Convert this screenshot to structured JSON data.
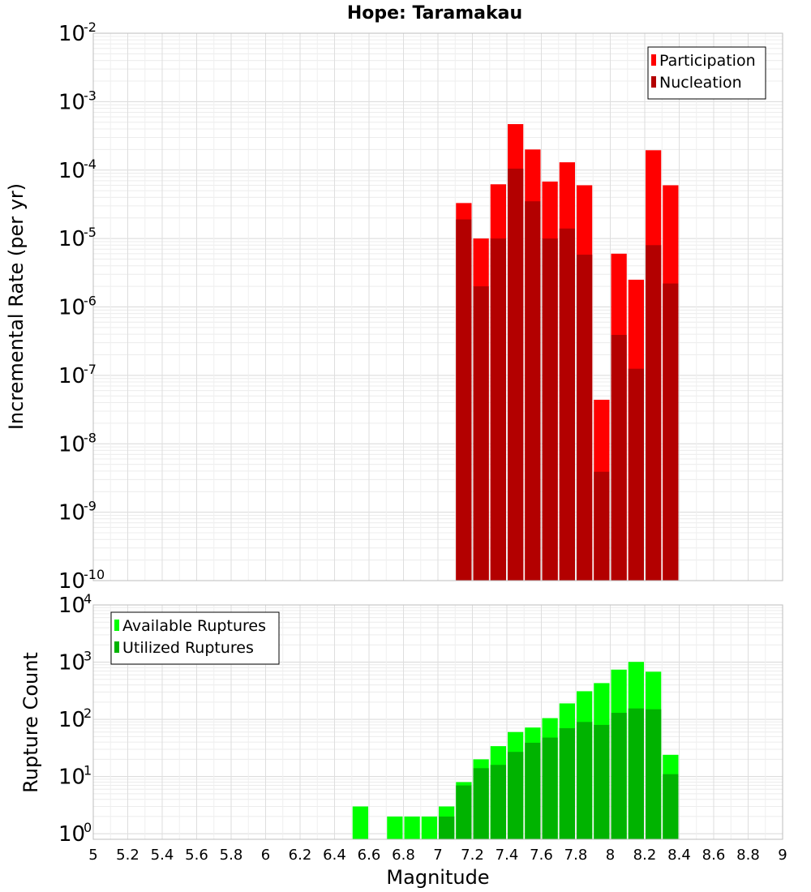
{
  "chart_data": [
    {
      "type": "bar",
      "title": "Hope: Taramakau",
      "xlabel": "Magnitude",
      "ylabel": "Incremental Rate (per yr)",
      "yscale": "log",
      "ylim": [
        1e-10,
        0.01
      ],
      "xlim": [
        5,
        9
      ],
      "grid": true,
      "legend_placement": "top-right",
      "x": [
        7.15,
        7.25,
        7.35,
        7.45,
        7.55,
        7.65,
        7.75,
        7.85,
        7.95,
        8.05,
        8.15,
        8.25,
        8.35
      ],
      "series": [
        {
          "name": "Participation",
          "color": "#ff0000",
          "values": [
            3.3e-05,
            1e-05,
            6.2e-05,
            0.00047,
            0.0002,
            6.8e-05,
            0.00013,
            6e-05,
            4.4e-08,
            6e-06,
            2.5e-06,
            0.000195,
            6e-05
          ]
        },
        {
          "name": "Nucleation",
          "color": "#b30000",
          "values": [
            1.9e-05,
            2e-06,
            1e-05,
            0.000105,
            3.5e-05,
            1e-05,
            1.4e-05,
            5.8e-06,
            3.9e-09,
            3.9e-07,
            1.25e-07,
            8e-06,
            2.2e-06
          ]
        }
      ]
    },
    {
      "type": "bar",
      "xlabel": "Magnitude",
      "ylabel": "Rupture Count",
      "yscale": "log",
      "ylim": [
        0.8,
        10000
      ],
      "xlim": [
        5,
        9
      ],
      "grid": true,
      "legend_placement": "top-left",
      "x": [
        6.55,
        6.75,
        6.85,
        6.95,
        7.05,
        7.15,
        7.25,
        7.35,
        7.45,
        7.55,
        7.65,
        7.75,
        7.85,
        7.95,
        8.05,
        8.15,
        8.25,
        8.35
      ],
      "series": [
        {
          "name": "Available Ruptures",
          "color": "#00ff00",
          "values": [
            3,
            2,
            2,
            2,
            3,
            8,
            20,
            34,
            60,
            72,
            105,
            190,
            310,
            430,
            740,
            1010,
            680,
            24
          ]
        },
        {
          "name": "Utilized Ruptures",
          "color": "#00b300",
          "values": [
            0,
            0,
            0,
            0,
            2,
            7,
            14,
            16,
            27,
            39,
            48,
            70,
            90,
            80,
            130,
            155,
            150,
            11
          ]
        }
      ]
    }
  ],
  "xticks": [
    "5",
    "5.2",
    "5.4",
    "5.6",
    "5.8",
    "6",
    "6.2",
    "6.4",
    "6.6",
    "6.8",
    "7",
    "7.2",
    "7.4",
    "7.6",
    "7.8",
    "8",
    "8.2",
    "8.4",
    "8.6",
    "8.8",
    "9"
  ],
  "top_yticks": {
    "base": "10",
    "exponents": [
      "-10",
      "-9",
      "-8",
      "-7",
      "-6",
      "-5",
      "-4",
      "-3",
      "-2"
    ]
  },
  "bottom_yticks": {
    "base": "10",
    "exponents": [
      "0",
      "1",
      "2",
      "3",
      "4"
    ]
  }
}
